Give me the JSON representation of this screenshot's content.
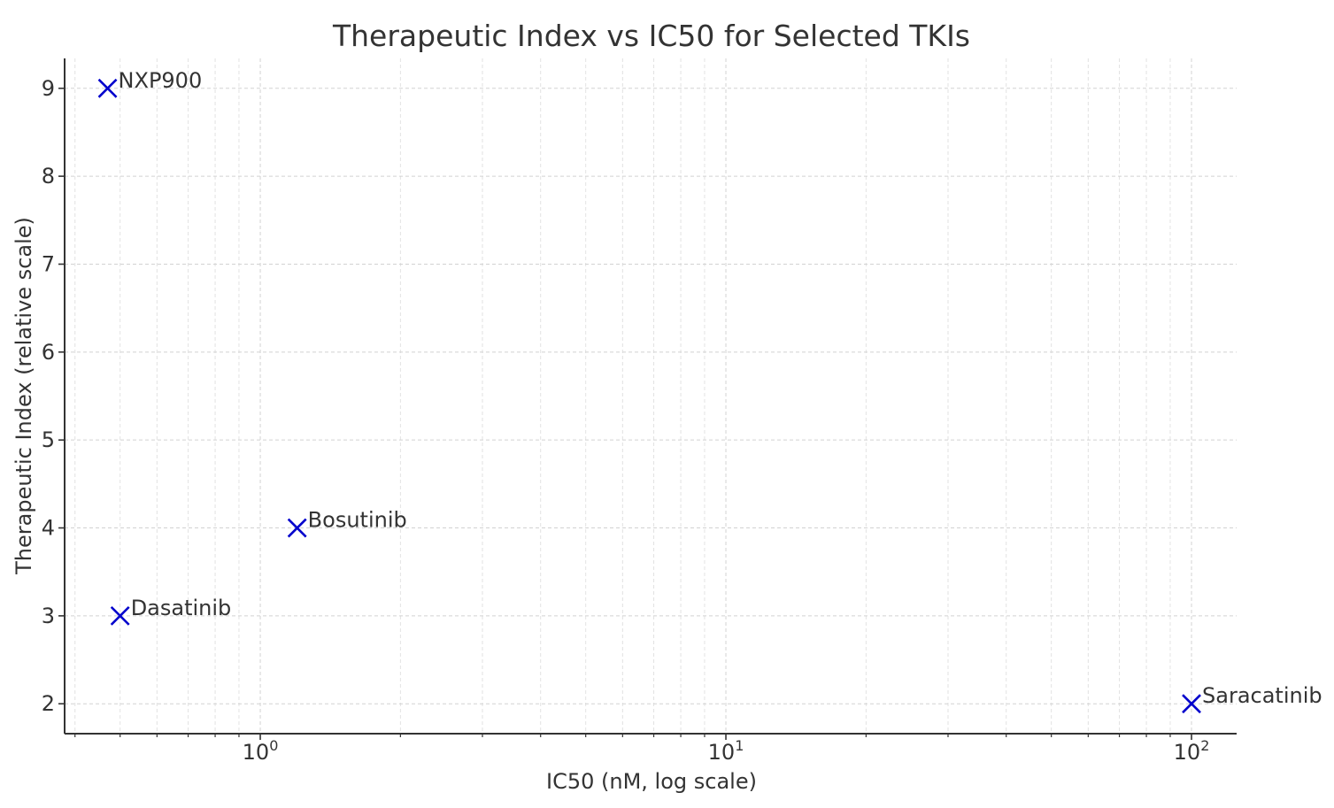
{
  "chart_data": {
    "type": "scatter",
    "title": "Therapeutic Index vs IC50 for Selected TKIs",
    "xlabel": "IC50 (nM, log scale)",
    "ylabel": "Therapeutic Index (relative scale)",
    "xscale": "log",
    "xlim": [
      0.38,
      125
    ],
    "ylim": [
      1.66,
      9.34
    ],
    "xticks": [
      {
        "value": 1,
        "base": "10",
        "exp": "0"
      },
      {
        "value": 10,
        "base": "10",
        "exp": "1"
      },
      {
        "value": 100,
        "base": "10",
        "exp": "2"
      }
    ],
    "yticks": [
      2,
      3,
      4,
      5,
      6,
      7,
      8,
      9
    ],
    "grid": true,
    "marker": "x",
    "color": "#0000cc",
    "points": [
      {
        "label": "NXP900",
        "x": 0.47,
        "y": 9
      },
      {
        "label": "Dasatinib",
        "x": 0.5,
        "y": 3
      },
      {
        "label": "Bosutinib",
        "x": 1.2,
        "y": 4
      },
      {
        "label": "Saracatinib",
        "x": 100,
        "y": 2
      }
    ]
  }
}
